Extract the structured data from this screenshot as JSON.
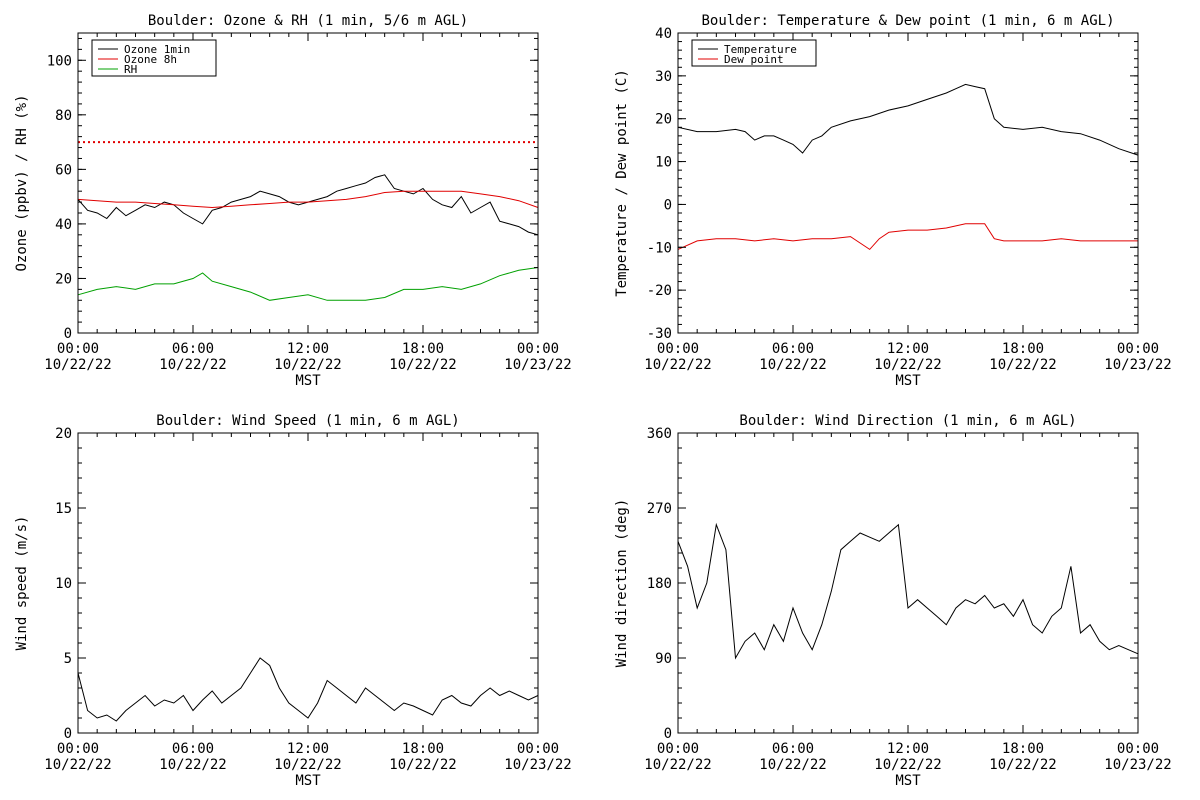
{
  "colors": {
    "black": "#000000",
    "red": "#e00000",
    "green": "#00a000"
  },
  "x_tick_labels": [
    {
      "time": "00:00",
      "date": "10/22/22"
    },
    {
      "time": "06:00",
      "date": "10/22/22"
    },
    {
      "time": "12:00",
      "date": "10/22/22"
    },
    {
      "time": "18:00",
      "date": "10/22/22"
    },
    {
      "time": "00:00",
      "date": "10/23/22"
    }
  ],
  "chart_data": [
    {
      "type": "line",
      "title": "Boulder: Ozone & RH (1 min, 5/6 m AGL)",
      "xlabel": "MST",
      "ylabel": "Ozone (ppbv) / RH (%)",
      "xlim": [
        0,
        24
      ],
      "ylim": [
        0,
        110
      ],
      "y_ticks": [
        0,
        20,
        40,
        60,
        80,
        100
      ],
      "legend": "top-left",
      "reference_line": {
        "y": 70,
        "color": "#e00000",
        "style": "dotted"
      },
      "series": [
        {
          "name": "Ozone 1min",
          "color": "#000000",
          "x": [
            0,
            0.5,
            1,
            1.5,
            2,
            2.5,
            3,
            3.5,
            4,
            4.5,
            5,
            5.5,
            6,
            6.5,
            7,
            7.5,
            8,
            8.5,
            9,
            9.5,
            10,
            10.5,
            11,
            11.5,
            12,
            12.5,
            13,
            13.5,
            14,
            14.5,
            15,
            15.5,
            16,
            16.5,
            17,
            17.5,
            18,
            18.5,
            19,
            19.5,
            20,
            20.5,
            21,
            21.5,
            22,
            22.5,
            23,
            23.5,
            24
          ],
          "values": [
            49,
            45,
            44,
            42,
            46,
            43,
            45,
            47,
            46,
            48,
            47,
            44,
            42,
            40,
            45,
            46,
            48,
            49,
            50,
            52,
            51,
            50,
            48,
            47,
            48,
            49,
            50,
            52,
            53,
            54,
            55,
            57,
            58,
            53,
            52,
            51,
            53,
            49,
            47,
            46,
            50,
            44,
            46,
            48,
            41,
            40,
            39,
            37,
            36
          ]
        },
        {
          "name": "Ozone 8h",
          "color": "#e00000",
          "x": [
            0,
            1,
            2,
            3,
            4,
            5,
            6,
            7,
            8,
            9,
            10,
            11,
            12,
            13,
            14,
            15,
            16,
            17,
            18,
            19,
            20,
            21,
            22,
            23,
            24
          ],
          "values": [
            49,
            48.5,
            48,
            48,
            47.5,
            47,
            46.5,
            46,
            46.5,
            47,
            47.5,
            48,
            48,
            48.5,
            49,
            50,
            51.5,
            52,
            52,
            52,
            52,
            51,
            50,
            48.5,
            46
          ]
        },
        {
          "name": "RH",
          "color": "#00a000",
          "x": [
            0,
            1,
            2,
            3,
            4,
            5,
            6,
            6.5,
            7,
            8,
            9,
            10,
            11,
            12,
            13,
            14,
            15,
            16,
            17,
            18,
            19,
            20,
            21,
            22,
            23,
            24
          ],
          "values": [
            14,
            16,
            17,
            16,
            18,
            18,
            20,
            22,
            19,
            17,
            15,
            12,
            13,
            14,
            12,
            12,
            12,
            13,
            16,
            16,
            17,
            16,
            18,
            21,
            23,
            24
          ]
        }
      ]
    },
    {
      "type": "line",
      "title": "Boulder: Temperature & Dew point (1 min, 6 m AGL)",
      "xlabel": "MST",
      "ylabel": "Temperature / Dew point (C)",
      "xlim": [
        0,
        24
      ],
      "ylim": [
        -30,
        40
      ],
      "y_ticks": [
        -30,
        -20,
        -10,
        0,
        10,
        20,
        30,
        40
      ],
      "legend": "top-left",
      "series": [
        {
          "name": "Temperature",
          "color": "#000000",
          "x": [
            0,
            1,
            2,
            3,
            3.5,
            4,
            4.5,
            5,
            5.5,
            6,
            6.5,
            7,
            7.5,
            8,
            9,
            10,
            11,
            12,
            13,
            14,
            14.5,
            15,
            15.5,
            16,
            16.5,
            17,
            18,
            19,
            20,
            21,
            22,
            23,
            24
          ],
          "values": [
            18,
            17,
            17,
            17.5,
            17,
            15,
            16,
            16,
            15,
            14,
            12,
            15,
            16,
            18,
            19.5,
            20.5,
            22,
            23,
            24.5,
            26,
            27,
            28,
            27.5,
            27,
            20,
            18,
            17.5,
            18,
            17,
            16.5,
            15,
            13,
            11.5
          ]
        },
        {
          "name": "Dew point",
          "color": "#e00000",
          "x": [
            0,
            1,
            2,
            3,
            4,
            5,
            6,
            7,
            8,
            9,
            9.5,
            10,
            10.5,
            11,
            12,
            13,
            14,
            15,
            16,
            16.5,
            17,
            18,
            19,
            20,
            21,
            22,
            23,
            24
          ],
          "values": [
            -10.5,
            -8.5,
            -8,
            -8,
            -8.5,
            -8,
            -8.5,
            -8,
            -8,
            -7.5,
            -9,
            -10.5,
            -8,
            -6.5,
            -6,
            -6,
            -5.5,
            -4.5,
            -4.5,
            -8,
            -8.5,
            -8.5,
            -8.5,
            -8,
            -8.5,
            -8.5,
            -8.5,
            -8.5
          ]
        }
      ]
    },
    {
      "type": "line",
      "title": "Boulder: Wind Speed (1 min, 6 m AGL)",
      "xlabel": "MST",
      "ylabel": "Wind speed (m/s)",
      "xlim": [
        0,
        24
      ],
      "ylim": [
        0,
        20
      ],
      "y_ticks": [
        0,
        5,
        10,
        15,
        20
      ],
      "series": [
        {
          "name": "",
          "color": "#000000",
          "x": [
            0,
            0.5,
            1,
            1.5,
            2,
            2.5,
            3,
            3.5,
            4,
            4.5,
            5,
            5.5,
            6,
            6.5,
            7,
            7.5,
            8,
            8.5,
            9,
            9.5,
            10,
            10.5,
            11,
            11.5,
            12,
            12.5,
            13,
            13.5,
            14,
            14.5,
            15,
            15.5,
            16,
            16.5,
            17,
            17.5,
            18,
            18.5,
            19,
            19.5,
            20,
            20.5,
            21,
            21.5,
            22,
            22.5,
            23,
            23.5,
            24
          ],
          "values": [
            4,
            1.5,
            1,
            1.2,
            0.8,
            1.5,
            2,
            2.5,
            1.8,
            2.2,
            2,
            2.5,
            1.5,
            2.2,
            2.8,
            2,
            2.5,
            3,
            4,
            5,
            4.5,
            3,
            2,
            1.5,
            1,
            2,
            3.5,
            3,
            2.5,
            2,
            3,
            2.5,
            2,
            1.5,
            2,
            1.8,
            1.5,
            1.2,
            2.2,
            2.5,
            2,
            1.8,
            2.5,
            3,
            2.5,
            2.8,
            2.5,
            2.2,
            2.5
          ]
        }
      ]
    },
    {
      "type": "line",
      "title": "Boulder: Wind Direction (1 min, 6 m AGL)",
      "xlabel": "MST",
      "ylabel": "Wind direction (deg)",
      "xlim": [
        0,
        24
      ],
      "ylim": [
        0,
        360
      ],
      "y_ticks": [
        0,
        90,
        180,
        270,
        360
      ],
      "series": [
        {
          "name": "",
          "color": "#000000",
          "x": [
            0,
            0.5,
            1,
            1.5,
            2,
            2.5,
            3,
            3.5,
            4,
            4.5,
            5,
            5.5,
            6,
            6.5,
            7,
            7.5,
            8,
            8.5,
            9,
            9.5,
            10,
            10.5,
            11,
            11.5,
            12,
            12.5,
            13,
            13.5,
            14,
            14.5,
            15,
            15.5,
            16,
            16.5,
            17,
            17.5,
            18,
            18.5,
            19,
            19.5,
            20,
            20.5,
            21,
            21.5,
            22,
            22.5,
            23,
            23.5,
            24
          ],
          "values": [
            230,
            200,
            150,
            180,
            250,
            220,
            90,
            110,
            120,
            100,
            130,
            110,
            150,
            120,
            100,
            130,
            170,
            220,
            230,
            240,
            235,
            230,
            240,
            250,
            150,
            160,
            150,
            140,
            130,
            150,
            160,
            155,
            165,
            150,
            155,
            140,
            160,
            130,
            120,
            140,
            150,
            200,
            120,
            130,
            110,
            100,
            105,
            100,
            95
          ]
        }
      ]
    }
  ]
}
